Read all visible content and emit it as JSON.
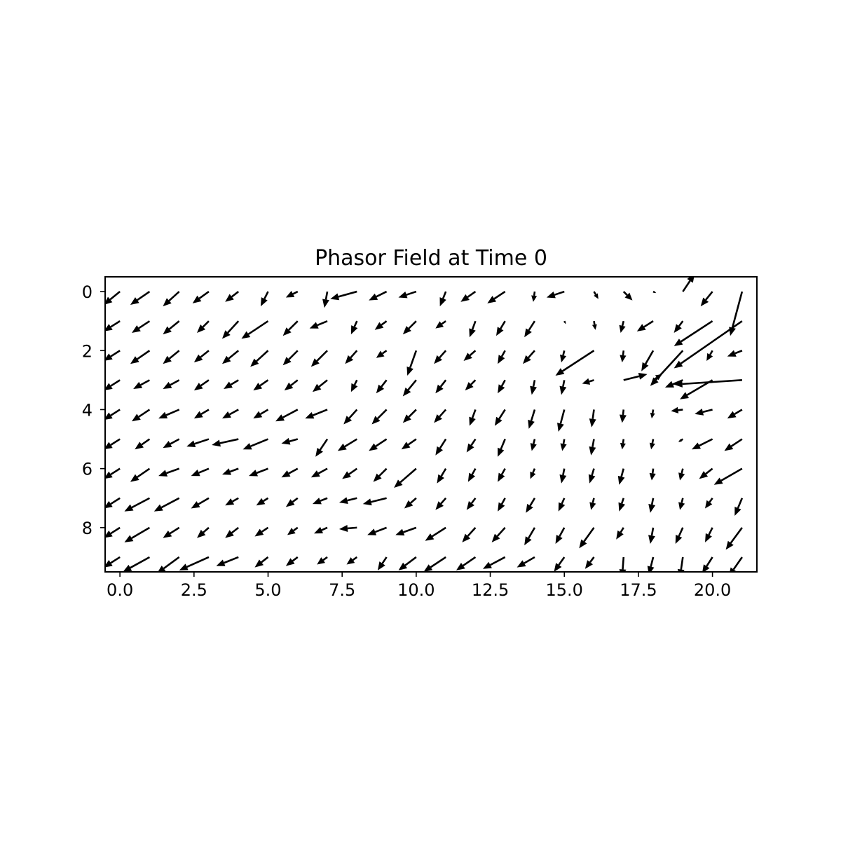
{
  "chart_data": {
    "type": "quiver",
    "title": "Phasor Field at Time 0",
    "xlabel": "",
    "ylabel": "",
    "xlim": [
      -0.5,
      21.5
    ],
    "ylim": [
      9.5,
      -0.5
    ],
    "y_axis_inverted": true,
    "grid": false,
    "arrow_color": "#000000",
    "xticks": [
      0.0,
      2.5,
      5.0,
      7.5,
      10.0,
      12.5,
      15.0,
      17.5,
      20.0
    ],
    "xtick_labels": [
      "0.0",
      "2.5",
      "5.0",
      "7.5",
      "10.0",
      "12.5",
      "15.0",
      "17.5",
      "20.0"
    ],
    "yticks": [
      0,
      2,
      4,
      6,
      8
    ],
    "ytick_labels": [
      "0",
      "2",
      "4",
      "6",
      "8"
    ],
    "grid_x": [
      0,
      1,
      2,
      3,
      4,
      5,
      6,
      7,
      8,
      9,
      10,
      11,
      12,
      13,
      14,
      15,
      16,
      17,
      18,
      19,
      20,
      21
    ],
    "grid_y": [
      0,
      1,
      2,
      3,
      4,
      5,
      6,
      7,
      8,
      9
    ],
    "vectors": [
      [
        [
          -0.55,
          0.45
        ],
        [
          -0.65,
          0.45
        ],
        [
          -0.55,
          0.5
        ],
        [
          -0.55,
          0.4
        ],
        [
          -0.45,
          0.35
        ],
        [
          -0.25,
          0.5
        ],
        [
          -0.4,
          0.2
        ],
        [
          -0.1,
          0.55
        ],
        [
          -0.9,
          0.25
        ],
        [
          -0.6,
          0.3
        ],
        [
          -0.6,
          0.2
        ],
        [
          -0.2,
          0.5
        ],
        [
          -0.5,
          0.35
        ],
        [
          -0.6,
          0.4
        ],
        [
          -0.05,
          0.35
        ],
        [
          -0.6,
          0.2
        ],
        [
          0.15,
          0.25
        ],
        [
          0.3,
          0.3
        ],
        [
          0.1,
          0.05
        ],
        [
          0.4,
          -0.6
        ],
        [
          -0.4,
          0.5
        ],
        [
          -0.4,
          1.5
        ]
      ],
      [
        [
          -0.55,
          0.35
        ],
        [
          -0.6,
          0.4
        ],
        [
          -0.55,
          0.45
        ],
        [
          -0.4,
          0.4
        ],
        [
          -0.55,
          0.6
        ],
        [
          -0.9,
          0.6
        ],
        [
          -0.5,
          0.5
        ],
        [
          -0.6,
          0.25
        ],
        [
          -0.2,
          0.45
        ],
        [
          -0.4,
          0.3
        ],
        [
          -0.45,
          0.45
        ],
        [
          -0.35,
          0.25
        ],
        [
          -0.2,
          0.55
        ],
        [
          -0.3,
          0.5
        ],
        [
          -0.35,
          0.55
        ],
        [
          0.05,
          0.1
        ],
        [
          0.05,
          0.3
        ],
        [
          -0.1,
          0.4
        ],
        [
          -0.55,
          0.35
        ],
        [
          -0.3,
          0.4
        ],
        [
          -1.3,
          0.85
        ],
        [
          -2.3,
          1.6
        ]
      ],
      [
        [
          -0.55,
          0.35
        ],
        [
          -0.65,
          0.45
        ],
        [
          -0.55,
          0.45
        ],
        [
          -0.5,
          0.4
        ],
        [
          -0.55,
          0.45
        ],
        [
          -0.6,
          0.55
        ],
        [
          -0.5,
          0.5
        ],
        [
          -0.55,
          0.55
        ],
        [
          -0.4,
          0.45
        ],
        [
          -0.35,
          0.25
        ],
        [
          -0.3,
          0.85
        ],
        [
          -0.4,
          0.45
        ],
        [
          -0.4,
          0.35
        ],
        [
          -0.25,
          0.45
        ],
        [
          -0.4,
          0.45
        ],
        [
          -0.1,
          0.4
        ],
        [
          -1.3,
          0.85
        ],
        [
          -0.05,
          0.4
        ],
        [
          -0.4,
          0.7
        ],
        [
          -1.1,
          1.2
        ],
        [
          -0.2,
          0.35
        ],
        [
          -0.5,
          0.2
        ]
      ],
      [
        [
          -0.55,
          0.35
        ],
        [
          -0.55,
          0.3
        ],
        [
          -0.55,
          0.3
        ],
        [
          -0.5,
          0.35
        ],
        [
          -0.5,
          0.3
        ],
        [
          -0.5,
          0.35
        ],
        [
          -0.45,
          0.35
        ],
        [
          -0.5,
          0.4
        ],
        [
          -0.2,
          0.4
        ],
        [
          -0.35,
          0.45
        ],
        [
          -0.45,
          0.55
        ],
        [
          -0.35,
          0.45
        ],
        [
          -0.35,
          0.35
        ],
        [
          -0.25,
          0.45
        ],
        [
          -0.1,
          0.5
        ],
        [
          -0.1,
          0.5
        ],
        [
          -0.4,
          0.12
        ],
        [
          0.8,
          -0.2
        ],
        [
          0.3,
          -0.2
        ],
        [
          -0.6,
          0.25
        ],
        [
          -1.1,
          0.65
        ],
        [
          -2.3,
          0.15
        ]
      ],
      [
        [
          -0.55,
          0.35
        ],
        [
          -0.6,
          0.4
        ],
        [
          -0.7,
          0.3
        ],
        [
          -0.5,
          0.3
        ],
        [
          -0.55,
          0.3
        ],
        [
          -0.5,
          0.3
        ],
        [
          -0.75,
          0.4
        ],
        [
          -0.75,
          0.3
        ],
        [
          -0.45,
          0.5
        ],
        [
          -0.5,
          0.5
        ],
        [
          -0.45,
          0.45
        ],
        [
          -0.4,
          0.45
        ],
        [
          -0.2,
          0.55
        ],
        [
          -0.35,
          0.55
        ],
        [
          -0.2,
          0.65
        ],
        [
          -0.2,
          0.75
        ],
        [
          -0.08,
          0.6
        ],
        [
          -0.05,
          0.45
        ],
        [
          -0.05,
          0.3
        ],
        [
          -0.4,
          0.05
        ],
        [
          -0.6,
          0.15
        ],
        [
          -0.5,
          0.3
        ]
      ],
      [
        [
          -0.55,
          0.35
        ],
        [
          -0.5,
          0.35
        ],
        [
          -0.55,
          0.3
        ],
        [
          -0.75,
          0.25
        ],
        [
          -0.9,
          0.2
        ],
        [
          -0.85,
          0.35
        ],
        [
          -0.55,
          0.15
        ],
        [
          -0.4,
          0.6
        ],
        [
          -0.65,
          0.4
        ],
        [
          -0.6,
          0.4
        ],
        [
          -0.5,
          0.35
        ],
        [
          -0.35,
          0.55
        ],
        [
          -0.3,
          0.45
        ],
        [
          -0.25,
          0.6
        ],
        [
          -0.1,
          0.4
        ],
        [
          -0.07,
          0.4
        ],
        [
          -0.1,
          0.55
        ],
        [
          -0.05,
          0.35
        ],
        [
          -0.07,
          0.35
        ],
        [
          -0.15,
          0.1
        ],
        [
          -0.7,
          0.35
        ],
        [
          -0.6,
          0.4
        ]
      ],
      [
        [
          -0.55,
          0.35
        ],
        [
          -0.65,
          0.45
        ],
        [
          -0.7,
          0.25
        ],
        [
          -0.6,
          0.25
        ],
        [
          -0.55,
          0.2
        ],
        [
          -0.65,
          0.25
        ],
        [
          -0.55,
          0.3
        ],
        [
          -0.55,
          0.3
        ],
        [
          -0.5,
          0.35
        ],
        [
          -0.45,
          0.45
        ],
        [
          -0.75,
          0.65
        ],
        [
          -0.3,
          0.5
        ],
        [
          -0.25,
          0.45
        ],
        [
          -0.25,
          0.45
        ],
        [
          -0.15,
          0.35
        ],
        [
          -0.1,
          0.5
        ],
        [
          -0.15,
          0.5
        ],
        [
          -0.15,
          0.55
        ],
        [
          -0.05,
          0.4
        ],
        [
          -0.1,
          0.4
        ],
        [
          -0.45,
          0.35
        ],
        [
          -0.95,
          0.55
        ]
      ],
      [
        [
          -0.55,
          0.35
        ],
        [
          -0.85,
          0.45
        ],
        [
          -0.85,
          0.45
        ],
        [
          -0.6,
          0.35
        ],
        [
          -0.45,
          0.25
        ],
        [
          -0.4,
          0.25
        ],
        [
          -0.4,
          0.3
        ],
        [
          -0.5,
          0.2
        ],
        [
          -0.6,
          0.15
        ],
        [
          -0.8,
          0.2
        ],
        [
          -0.4,
          0.35
        ],
        [
          -0.35,
          0.4
        ],
        [
          -0.3,
          0.4
        ],
        [
          -0.25,
          0.45
        ],
        [
          -0.3,
          0.5
        ],
        [
          -0.2,
          0.45
        ],
        [
          -0.1,
          0.4
        ],
        [
          -0.15,
          0.45
        ],
        [
          -0.1,
          0.5
        ],
        [
          -0.1,
          0.4
        ],
        [
          -0.25,
          0.35
        ],
        [
          -0.25,
          0.6
        ]
      ],
      [
        [
          -0.55,
          0.35
        ],
        [
          -0.85,
          0.5
        ],
        [
          -0.55,
          0.35
        ],
        [
          -0.4,
          0.35
        ],
        [
          -0.45,
          0.35
        ],
        [
          -0.45,
          0.3
        ],
        [
          -0.35,
          0.25
        ],
        [
          -0.45,
          0.2
        ],
        [
          -0.6,
          0.05
        ],
        [
          -0.65,
          0.25
        ],
        [
          -0.7,
          0.25
        ],
        [
          -0.7,
          0.45
        ],
        [
          -0.45,
          0.5
        ],
        [
          -0.45,
          0.5
        ],
        [
          -0.35,
          0.6
        ],
        [
          -0.3,
          0.55
        ],
        [
          -0.5,
          0.7
        ],
        [
          -0.25,
          0.4
        ],
        [
          -0.1,
          0.55
        ],
        [
          -0.25,
          0.55
        ],
        [
          -0.25,
          0.5
        ],
        [
          -0.55,
          0.75
        ]
      ],
      [
        [
          -0.55,
          0.35
        ],
        [
          -0.9,
          0.5
        ],
        [
          -0.75,
          0.55
        ],
        [
          -1.0,
          0.45
        ],
        [
          -0.75,
          0.3
        ],
        [
          -0.45,
          0.35
        ],
        [
          -0.4,
          0.3
        ],
        [
          -0.35,
          0.25
        ],
        [
          -0.35,
          0.25
        ],
        [
          -0.3,
          0.45
        ],
        [
          -0.6,
          0.45
        ],
        [
          -0.75,
          0.5
        ],
        [
          -0.65,
          0.45
        ],
        [
          -0.75,
          0.4
        ],
        [
          -0.6,
          0.35
        ],
        [
          -0.35,
          0.5
        ],
        [
          -0.3,
          0.4
        ],
        [
          -0.05,
          0.7
        ],
        [
          -0.15,
          0.6
        ],
        [
          -0.1,
          0.7
        ],
        [
          -0.35,
          0.55
        ],
        [
          -0.45,
          0.65
        ]
      ]
    ]
  }
}
